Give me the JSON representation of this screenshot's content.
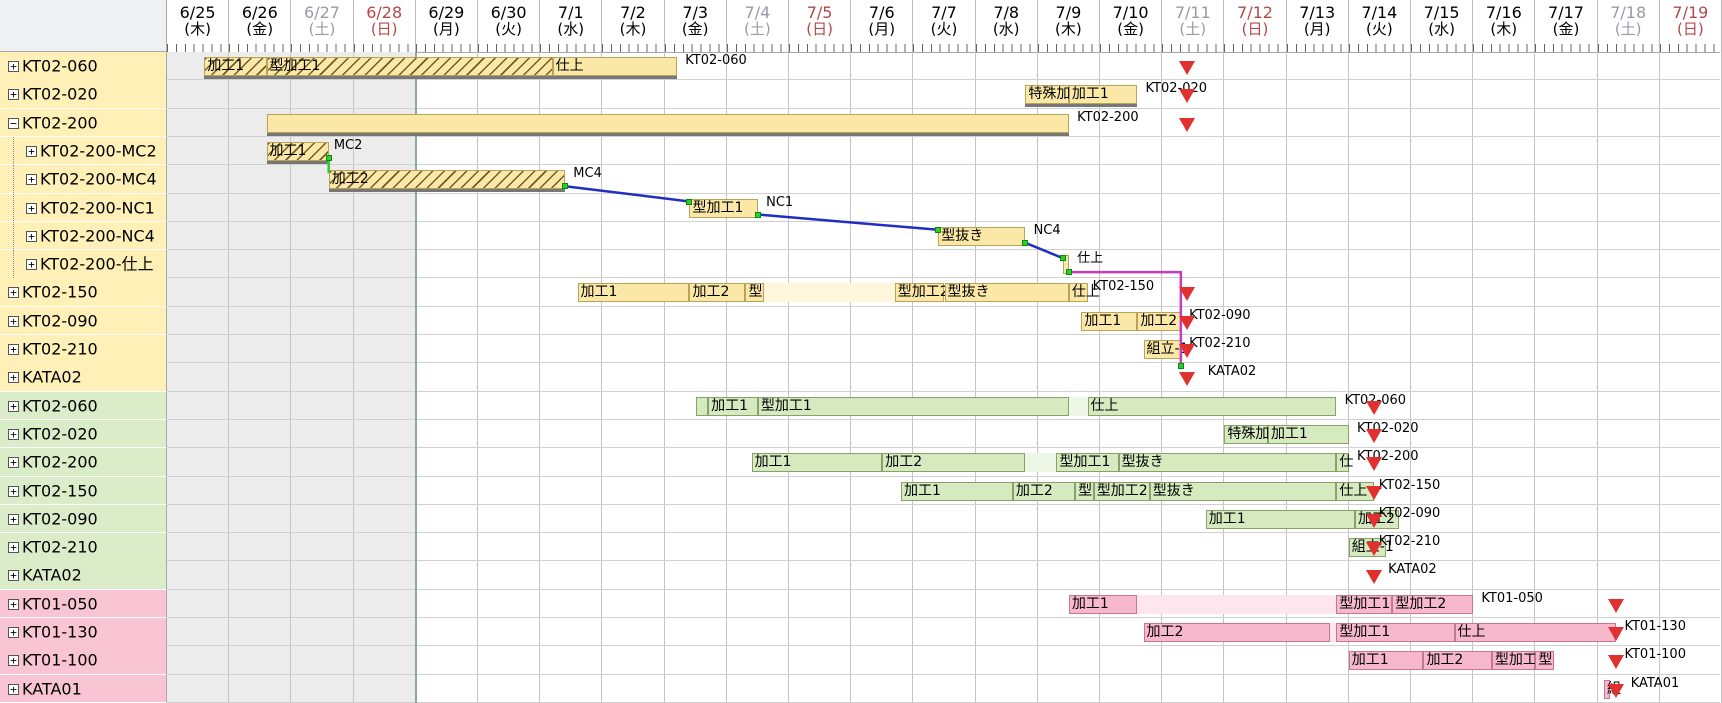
{
  "header": {
    "days": [
      {
        "date": "6/25",
        "dow": "(木)",
        "kind": "wk"
      },
      {
        "date": "6/26",
        "dow": "(金)",
        "kind": "wk"
      },
      {
        "date": "6/27",
        "dow": "(土)",
        "kind": "sat"
      },
      {
        "date": "6/28",
        "dow": "(日)",
        "kind": "sun"
      },
      {
        "date": "6/29",
        "dow": "(月)",
        "kind": "wk"
      },
      {
        "date": "6/30",
        "dow": "(火)",
        "kind": "wk"
      },
      {
        "date": "7/1",
        "dow": "(水)",
        "kind": "wk"
      },
      {
        "date": "7/2",
        "dow": "(木)",
        "kind": "wk"
      },
      {
        "date": "7/3",
        "dow": "(金)",
        "kind": "wk"
      },
      {
        "date": "7/4",
        "dow": "(土)",
        "kind": "sat"
      },
      {
        "date": "7/5",
        "dow": "(日)",
        "kind": "sun"
      },
      {
        "date": "7/6",
        "dow": "(月)",
        "kind": "wk"
      },
      {
        "date": "7/7",
        "dow": "(火)",
        "kind": "wk"
      },
      {
        "date": "7/8",
        "dow": "(水)",
        "kind": "wk"
      },
      {
        "date": "7/9",
        "dow": "(木)",
        "kind": "wk"
      },
      {
        "date": "7/10",
        "dow": "(金)",
        "kind": "wk"
      },
      {
        "date": "7/11",
        "dow": "(土)",
        "kind": "sat"
      },
      {
        "date": "7/12",
        "dow": "(日)",
        "kind": "sun"
      },
      {
        "date": "7/13",
        "dow": "(月)",
        "kind": "wk"
      },
      {
        "date": "7/14",
        "dow": "(火)",
        "kind": "wk"
      },
      {
        "date": "7/15",
        "dow": "(水)",
        "kind": "wk"
      },
      {
        "date": "7/16",
        "dow": "(木)",
        "kind": "wk"
      },
      {
        "date": "7/17",
        "dow": "(金)",
        "kind": "wk"
      },
      {
        "date": "7/18",
        "dow": "(土)",
        "kind": "sat"
      },
      {
        "date": "7/19",
        "dow": "(日)",
        "kind": "sun"
      }
    ]
  },
  "colors": {
    "yellow": "#fff0b8",
    "green": "#dbecc9",
    "pink": "#f9c4d4",
    "milestone": "#e03030",
    "link_blue": "#1f2fbf",
    "link_magenta": "#c03cc0"
  },
  "rows": [
    {
      "label": "KT02-060",
      "expander": "⊞",
      "level": 0,
      "group": "yellow"
    },
    {
      "label": "KT02-020",
      "expander": "⊞",
      "level": 0,
      "group": "yellow"
    },
    {
      "label": "KT02-200",
      "expander": "⊟",
      "level": 0,
      "group": "yellow"
    },
    {
      "label": "KT02-200-MC2",
      "expander": "⊞",
      "level": 1,
      "group": "yellow"
    },
    {
      "label": "KT02-200-MC4",
      "expander": "⊞",
      "level": 1,
      "group": "yellow"
    },
    {
      "label": "KT02-200-NC1",
      "expander": "⊞",
      "level": 1,
      "group": "yellow"
    },
    {
      "label": "KT02-200-NC4",
      "expander": "⊞",
      "level": 1,
      "group": "yellow"
    },
    {
      "label": "KT02-200-仕上",
      "expander": "⊞",
      "level": 1,
      "group": "yellow"
    },
    {
      "label": "KT02-150",
      "expander": "⊞",
      "level": 0,
      "group": "yellow"
    },
    {
      "label": "KT02-090",
      "expander": "⊞",
      "level": 0,
      "group": "yellow"
    },
    {
      "label": "KT02-210",
      "expander": "⊞",
      "level": 0,
      "group": "yellow"
    },
    {
      "label": "KATA02",
      "expander": "⊞",
      "level": 0,
      "group": "yellow"
    },
    {
      "label": "KT02-060",
      "expander": "⊞",
      "level": 0,
      "group": "green"
    },
    {
      "label": "KT02-020",
      "expander": "⊞",
      "level": 0,
      "group": "green"
    },
    {
      "label": "KT02-200",
      "expander": "⊞",
      "level": 0,
      "group": "green"
    },
    {
      "label": "KT02-150",
      "expander": "⊞",
      "level": 0,
      "group": "green"
    },
    {
      "label": "KT02-090",
      "expander": "⊞",
      "level": 0,
      "group": "green"
    },
    {
      "label": "KT02-210",
      "expander": "⊞",
      "level": 0,
      "group": "green"
    },
    {
      "label": "KATA02",
      "expander": "⊞",
      "level": 0,
      "group": "green"
    },
    {
      "label": "KT01-050",
      "expander": "⊞",
      "level": 0,
      "group": "pink"
    },
    {
      "label": "KT01-130",
      "expander": "⊞",
      "level": 0,
      "group": "pink"
    },
    {
      "label": "KT01-100",
      "expander": "⊞",
      "level": 0,
      "group": "pink"
    },
    {
      "label": "KATA01",
      "expander": "⊞",
      "level": 0,
      "group": "pink"
    }
  ],
  "bars": [
    {
      "row": 0,
      "c": "y",
      "name": "KT02-060",
      "segs": [
        {
          "s": 0.6,
          "e": 1.6,
          "t": "加工1",
          "h": 1
        },
        {
          "s": 1.6,
          "e": 6.2,
          "t": "型加工1",
          "h": 1
        },
        {
          "s": 6.2,
          "e": 8.2,
          "t": "仕上"
        }
      ]
    },
    {
      "row": 1,
      "c": "y",
      "name": "KT02-020",
      "segs": [
        {
          "s": 13.8,
          "e": 14.5,
          "t": "特殊加"
        },
        {
          "s": 14.5,
          "e": 15.6,
          "t": "加工1"
        }
      ]
    },
    {
      "row": 2,
      "c": "y",
      "name": "KT02-200",
      "segs": [
        {
          "s": 1.6,
          "e": 14.5,
          "t": ""
        }
      ]
    },
    {
      "row": 3,
      "c": "y",
      "name": "MC2",
      "segs": [
        {
          "s": 1.6,
          "e": 2.6,
          "t": "加工1",
          "h": 1
        }
      ]
    },
    {
      "row": 4,
      "c": "y",
      "name": "MC4",
      "segs": [
        {
          "s": 2.6,
          "e": 6.4,
          "t": "加工2",
          "h": 1
        }
      ]
    },
    {
      "row": 5,
      "c": "y",
      "name": "NC1",
      "segs": [
        {
          "s": 8.4,
          "e": 9.5,
          "t": "型加工1"
        }
      ]
    },
    {
      "row": 6,
      "c": "y",
      "name": "NC4",
      "segs": [
        {
          "s": 12.4,
          "e": 13.8,
          "t": "型抜き"
        }
      ]
    },
    {
      "row": 7,
      "c": "y",
      "name": "仕上",
      "segs": [
        {
          "s": 14.4,
          "e": 14.5,
          "t": ""
        }
      ]
    },
    {
      "row": 8,
      "c": "y",
      "name": "KT02-150",
      "segs": [
        {
          "s": 6.6,
          "e": 8.4,
          "t": "加工1"
        },
        {
          "s": 8.4,
          "e": 9.3,
          "t": "加工2"
        },
        {
          "s": 9.3,
          "e": 9.6,
          "t": "型"
        },
        {
          "s": 11.7,
          "e": 12.5,
          "t": "型加工2"
        },
        {
          "s": 12.5,
          "e": 14.5,
          "t": "型抜き"
        },
        {
          "s": 14.5,
          "e": 14.8,
          "t": "仕上"
        }
      ]
    },
    {
      "row": 9,
      "c": "y",
      "name": "KT02-090",
      "segs": [
        {
          "s": 14.7,
          "e": 15.6,
          "t": "加工1"
        },
        {
          "s": 15.6,
          "e": 16.3,
          "t": "加工2"
        }
      ]
    },
    {
      "row": 10,
      "c": "y",
      "name": "KT02-210",
      "segs": [
        {
          "s": 15.7,
          "e": 16.3,
          "t": "組立-1"
        }
      ]
    },
    {
      "row": 11,
      "c": "y",
      "name": "KATA02",
      "segs": []
    },
    {
      "row": 12,
      "c": "g",
      "name": "KT02-060",
      "segs": [
        {
          "s": 8.5,
          "e": 8.7,
          "t": ""
        },
        {
          "s": 8.7,
          "e": 9.5,
          "t": "加工1"
        },
        {
          "s": 9.5,
          "e": 14.5,
          "t": "型加工1"
        },
        {
          "s": 14.8,
          "e": 18.8,
          "t": "仕上"
        }
      ]
    },
    {
      "row": 13,
      "c": "g",
      "name": "KT02-020",
      "segs": [
        {
          "s": 17.0,
          "e": 17.7,
          "t": "特殊加"
        },
        {
          "s": 17.7,
          "e": 19.0,
          "t": "加工1"
        }
      ]
    },
    {
      "row": 14,
      "c": "g",
      "name": "KT02-200",
      "segs": [
        {
          "s": 9.4,
          "e": 11.5,
          "t": "加工1"
        },
        {
          "s": 11.5,
          "e": 13.8,
          "t": "加工2"
        },
        {
          "s": 14.3,
          "e": 15.3,
          "t": "型加工1"
        },
        {
          "s": 15.3,
          "e": 18.8,
          "t": "型抜き"
        },
        {
          "s": 18.8,
          "e": 19.0,
          "t": "仕"
        }
      ]
    },
    {
      "row": 15,
      "c": "g",
      "name": "KT02-150",
      "segs": [
        {
          "s": 11.8,
          "e": 13.6,
          "t": "加工1"
        },
        {
          "s": 13.6,
          "e": 14.6,
          "t": "加工2"
        },
        {
          "s": 14.6,
          "e": 14.9,
          "t": "型"
        },
        {
          "s": 14.9,
          "e": 15.8,
          "t": "型加工2"
        },
        {
          "s": 15.8,
          "e": 18.8,
          "t": "型抜き"
        },
        {
          "s": 18.8,
          "e": 19.4,
          "t": "仕上"
        }
      ]
    },
    {
      "row": 16,
      "c": "g",
      "name": "KT02-090",
      "segs": [
        {
          "s": 16.7,
          "e": 19.1,
          "t": "加工1"
        },
        {
          "s": 19.1,
          "e": 19.8,
          "t": "加工2"
        }
      ]
    },
    {
      "row": 17,
      "c": "g",
      "name": "KT02-210",
      "segs": [
        {
          "s": 19.0,
          "e": 19.6,
          "t": "組立-1"
        }
      ]
    },
    {
      "row": 18,
      "c": "g",
      "name": "KATA02",
      "segs": []
    },
    {
      "row": 19,
      "c": "p",
      "name": "KT01-050",
      "segs": [
        {
          "s": 14.5,
          "e": 15.6,
          "t": "加工1"
        },
        {
          "s": 18.8,
          "e": 19.7,
          "t": "型加工1"
        },
        {
          "s": 19.7,
          "e": 21.0,
          "t": "型加工2"
        }
      ]
    },
    {
      "row": 20,
      "c": "p",
      "name": "KT01-130",
      "segs": [
        {
          "s": 15.7,
          "e": 18.7,
          "t": "加工2"
        },
        {
          "s": 18.8,
          "e": 20.7,
          "t": "型加工1"
        },
        {
          "s": 20.7,
          "e": 23.3,
          "t": "仕上"
        }
      ]
    },
    {
      "row": 21,
      "c": "p",
      "name": "KT01-100",
      "segs": [
        {
          "s": 19.0,
          "e": 20.2,
          "t": "加工1"
        },
        {
          "s": 20.2,
          "e": 21.3,
          "t": "加工2"
        },
        {
          "s": 21.3,
          "e": 22.0,
          "t": "型加工"
        },
        {
          "s": 22.0,
          "e": 22.3,
          "t": "型"
        }
      ]
    },
    {
      "row": 22,
      "c": "p",
      "name": "KATA01",
      "segs": [
        {
          "s": 23.1,
          "e": 23.2,
          "t": "組"
        }
      ]
    }
  ],
  "bar_labels": [
    {
      "row": 0,
      "at": 8.3,
      "t": "KT02-060"
    },
    {
      "row": 1,
      "at": 15.7,
      "t": "KT02-020"
    },
    {
      "row": 2,
      "at": 14.6,
      "t": "KT02-200"
    },
    {
      "row": 3,
      "at": 2.65,
      "t": "MC2"
    },
    {
      "row": 4,
      "at": 6.5,
      "t": "MC4"
    },
    {
      "row": 5,
      "at": 9.6,
      "t": "NC1"
    },
    {
      "row": 6,
      "at": 13.9,
      "t": "NC4"
    },
    {
      "row": 7,
      "at": 14.6,
      "t": "仕上"
    },
    {
      "row": 8,
      "at": 14.85,
      "t": "KT02-150"
    },
    {
      "row": 9,
      "at": 16.4,
      "t": "KT02-090"
    },
    {
      "row": 10,
      "at": 16.4,
      "t": "KT02-210"
    },
    {
      "row": 11,
      "at": 16.7,
      "t": "KATA02"
    },
    {
      "row": 12,
      "at": 18.9,
      "t": "KT02-060"
    },
    {
      "row": 13,
      "at": 19.1,
      "t": "KT02-020"
    },
    {
      "row": 14,
      "at": 19.1,
      "t": "KT02-200"
    },
    {
      "row": 15,
      "at": 19.45,
      "t": "KT02-150"
    },
    {
      "row": 16,
      "at": 19.45,
      "t": "KT02-090"
    },
    {
      "row": 17,
      "at": 19.45,
      "t": "KT02-210"
    },
    {
      "row": 18,
      "at": 19.6,
      "t": "KATA02"
    },
    {
      "row": 19,
      "at": 21.1,
      "t": "KT01-050"
    },
    {
      "row": 20,
      "at": 23.4,
      "t": "KT01-130"
    },
    {
      "row": 21,
      "at": 23.4,
      "t": "KT01-100"
    },
    {
      "row": 22,
      "at": 23.5,
      "t": "KATA01"
    }
  ],
  "milestones": [
    {
      "row": 0,
      "at": 16.4
    },
    {
      "row": 1,
      "at": 16.4
    },
    {
      "row": 2,
      "at": 16.4
    },
    {
      "row": 8,
      "at": 16.4
    },
    {
      "row": 9,
      "at": 16.4
    },
    {
      "row": 10,
      "at": 16.4
    },
    {
      "row": 11,
      "at": 16.4
    },
    {
      "row": 12,
      "at": 19.4
    },
    {
      "row": 13,
      "at": 19.4
    },
    {
      "row": 14,
      "at": 19.4
    },
    {
      "row": 15,
      "at": 19.4
    },
    {
      "row": 16,
      "at": 19.4
    },
    {
      "row": 17,
      "at": 19.4
    },
    {
      "row": 18,
      "at": 19.4
    },
    {
      "row": 19,
      "at": 23.3
    },
    {
      "row": 20,
      "at": 23.3
    },
    {
      "row": 21,
      "at": 23.3
    },
    {
      "row": 22,
      "at": 23.3
    }
  ]
}
